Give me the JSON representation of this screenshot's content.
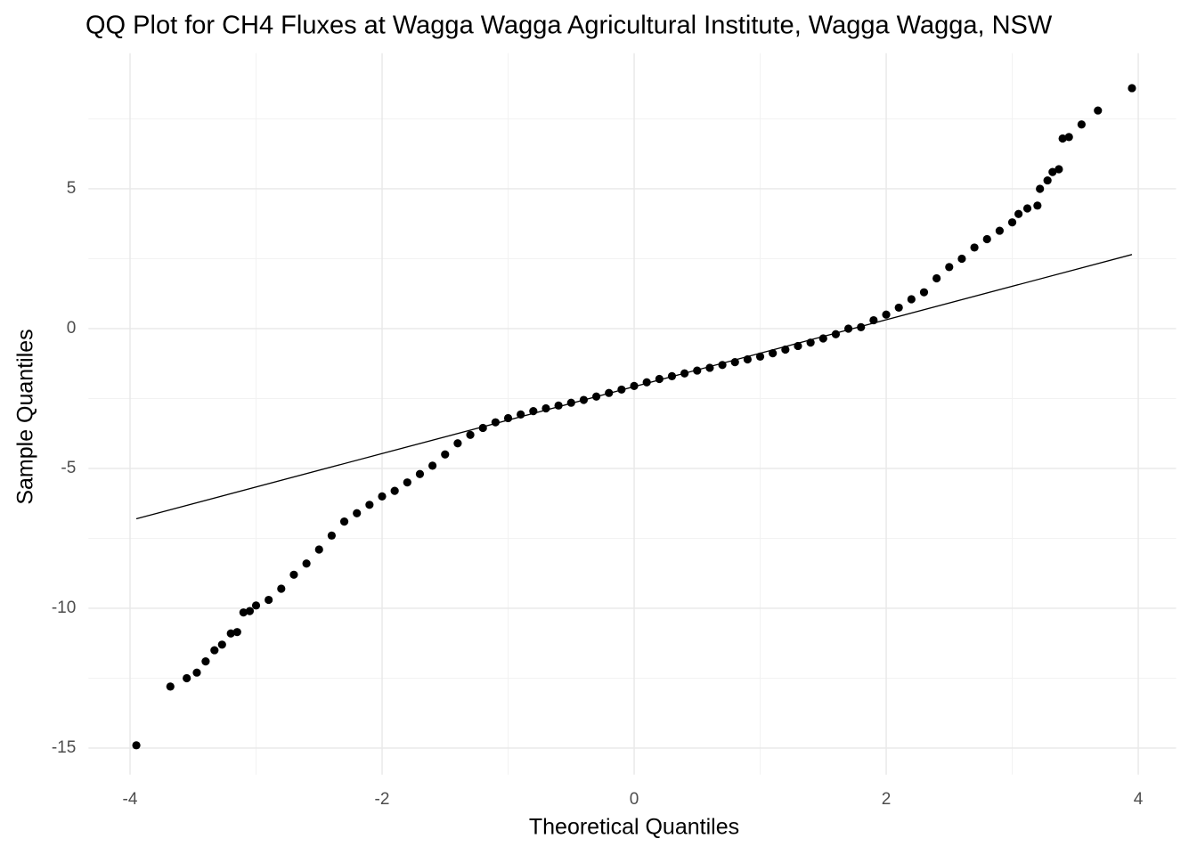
{
  "chart_data": {
    "type": "scatter",
    "title": "QQ Plot for CH4 Fluxes at Wagga Wagga Agricultural Institute, Wagga Wagga, NSW",
    "x_label": "Theoretical Quantiles",
    "y_label": "Sample Quantiles",
    "xlim": [
      -4.33,
      4.3
    ],
    "ylim": [
      -15.95,
      9.85
    ],
    "xticks": [
      -4,
      -2,
      0,
      2,
      4
    ],
    "yticks": [
      -15,
      -10,
      -5,
      0,
      5
    ],
    "grid": true,
    "color": "#000000",
    "x": [
      -3.95,
      -3.68,
      -3.55,
      -3.47,
      -3.4,
      -3.33,
      -3.27,
      -3.2,
      -3.15,
      -3.1,
      -3.05,
      -3.0,
      -2.9,
      -2.8,
      -2.7,
      -2.6,
      -2.5,
      -2.4,
      -2.3,
      -2.2,
      -2.1,
      -2.0,
      -1.9,
      -1.8,
      -1.7,
      -1.6,
      -1.5,
      -1.4,
      -1.3,
      -1.2,
      -1.1,
      -1.0,
      -0.9,
      -0.8,
      -0.7,
      -0.6,
      -0.5,
      -0.4,
      -0.3,
      -0.2,
      -0.1,
      0,
      0.1,
      0.2,
      0.3,
      0.4,
      0.5,
      0.6,
      0.7,
      0.8,
      0.9,
      1.0,
      1.1,
      1.2,
      1.3,
      1.4,
      1.5,
      1.6,
      1.7,
      1.8,
      1.9,
      2.0,
      2.1,
      2.2,
      2.3,
      2.4,
      2.5,
      2.6,
      2.7,
      2.8,
      2.9,
      3.0,
      3.05,
      3.12,
      3.2,
      3.22,
      3.28,
      3.32,
      3.37,
      3.4,
      3.45,
      3.55,
      3.68,
      3.95
    ],
    "y": [
      -14.9,
      -12.8,
      -12.5,
      -12.3,
      -11.9,
      -11.5,
      -11.3,
      -10.9,
      -10.85,
      -10.15,
      -10.1,
      -9.9,
      -9.7,
      -9.3,
      -8.8,
      -8.4,
      -7.9,
      -7.4,
      -6.9,
      -6.6,
      -6.3,
      -6.0,
      -5.8,
      -5.5,
      -5.2,
      -4.9,
      -4.5,
      -4.1,
      -3.8,
      -3.55,
      -3.35,
      -3.2,
      -3.07,
      -2.95,
      -2.85,
      -2.75,
      -2.65,
      -2.55,
      -2.43,
      -2.3,
      -2.18,
      -2.05,
      -1.92,
      -1.8,
      -1.7,
      -1.6,
      -1.5,
      -1.4,
      -1.3,
      -1.2,
      -1.1,
      -1.0,
      -0.88,
      -0.75,
      -0.62,
      -0.5,
      -0.35,
      -0.2,
      0.0,
      0.05,
      0.3,
      0.5,
      0.75,
      1.05,
      1.3,
      1.8,
      2.2,
      2.5,
      2.9,
      3.2,
      3.5,
      3.8,
      4.1,
      4.3,
      4.4,
      5.0,
      5.3,
      5.6,
      5.7,
      6.8,
      6.85,
      7.3,
      7.8,
      8.6
    ],
    "reference_line": {
      "x": [
        -3.95,
        3.95
      ],
      "y": [
        -6.8,
        2.65
      ]
    }
  }
}
